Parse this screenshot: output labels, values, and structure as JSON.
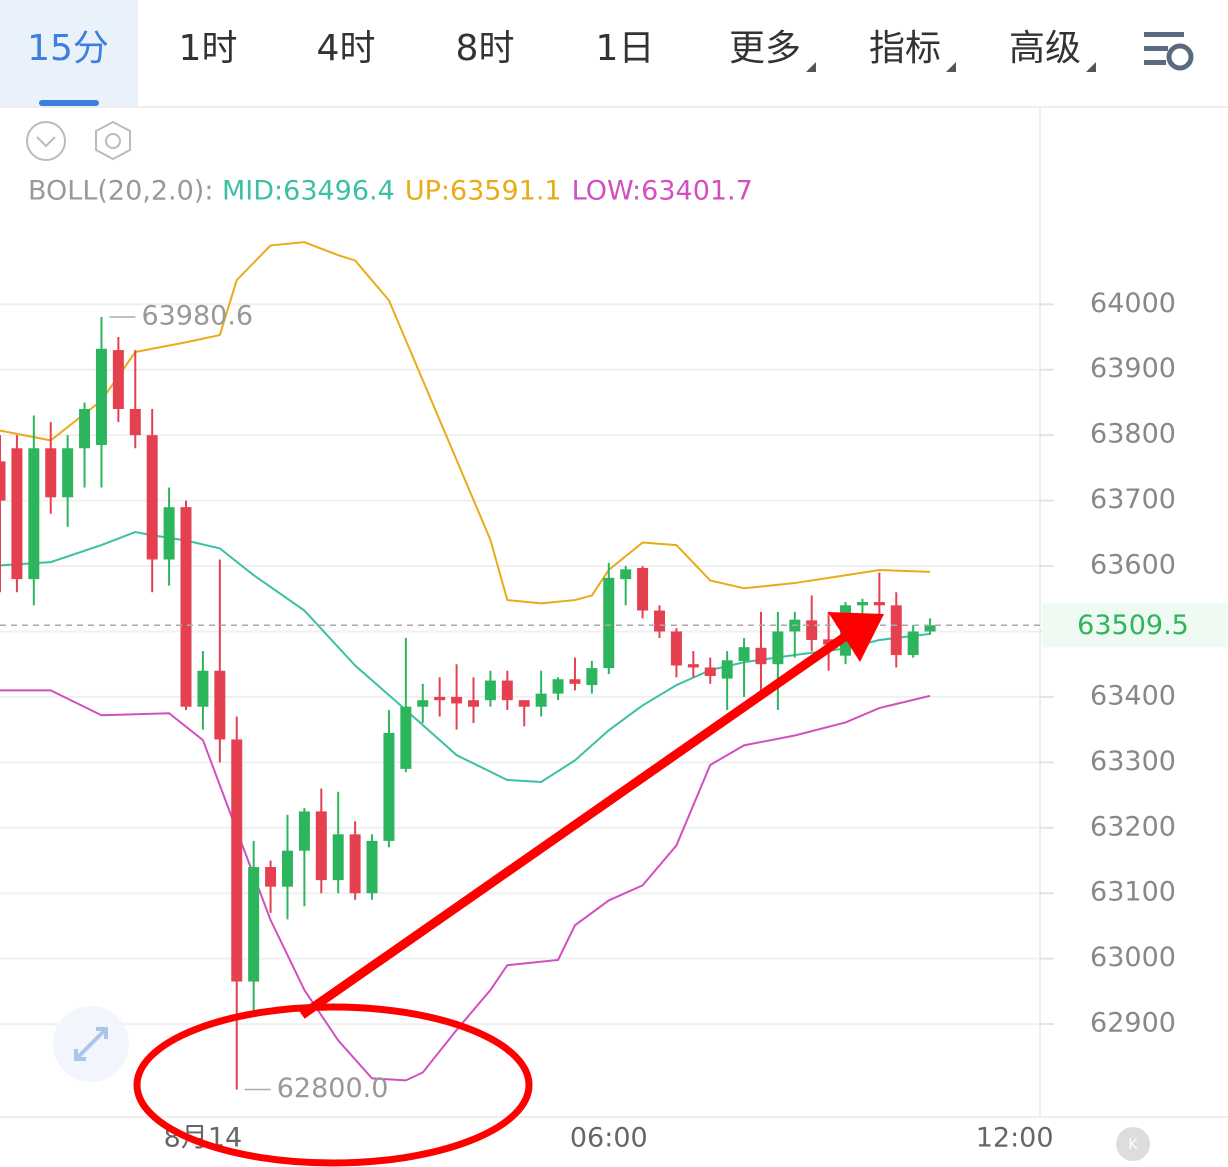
{
  "toolbar": {
    "tabs": [
      "15分",
      "1时",
      "4时",
      "8时",
      "1日",
      "更多",
      "指标",
      "高级"
    ],
    "active": 0
  },
  "chart_data": {
    "type": "candlestick",
    "indicator": "BOLL(20,2.0):",
    "x": [
      0,
      1,
      2,
      3,
      4,
      5,
      6,
      7,
      8,
      9,
      10,
      11,
      12,
      13,
      14,
      15,
      16,
      17,
      18,
      19,
      20,
      21,
      22,
      23,
      24,
      25,
      26,
      27,
      28,
      29,
      30,
      31,
      32,
      33,
      34,
      35,
      36,
      37,
      38,
      39,
      40,
      41,
      42,
      43,
      44,
      45,
      46,
      47,
      48,
      49,
      50,
      51,
      52,
      53,
      54,
      55
    ],
    "open": [
      63760,
      63780,
      63580,
      63780,
      63705,
      63780,
      63785,
      63930,
      63840,
      63800,
      63610,
      63690,
      63385,
      63440,
      63335,
      62965,
      63140,
      63110,
      63165,
      63225,
      63120,
      63190,
      63100,
      63180,
      63290,
      63385,
      63400,
      63400,
      63395,
      63395,
      63425,
      63395,
      63385,
      63405,
      63427,
      63418,
      63444,
      63580,
      63597,
      63532,
      63500,
      63450,
      63445,
      63428,
      63455,
      63475,
      63450,
      63500,
      63517,
      63488,
      63463,
      63540,
      63545,
      63540,
      63464,
      63500
    ],
    "high": [
      63800,
      63800,
      63830,
      63820,
      63800,
      63850,
      63980.6,
      63950,
      63930,
      63840,
      63720,
      63700,
      63470,
      63610,
      63370,
      63180,
      63150,
      63220,
      63230,
      63260,
      63255,
      63210,
      63190,
      63380,
      63490,
      63420,
      63430,
      63450,
      63430,
      63440,
      63440,
      63395,
      63440,
      63430,
      63460,
      63455,
      63605,
      63600,
      63600,
      63540,
      63505,
      63470,
      63460,
      63470,
      63490,
      63530,
      63530,
      63530,
      63555,
      63530,
      63545,
      63550,
      63590,
      63560,
      63510,
      63520
    ],
    "low": [
      63560,
      63560,
      63540,
      63680,
      63660,
      63720,
      63720,
      63820,
      63780,
      63560,
      63570,
      63380,
      63350,
      63300,
      62800.0,
      62920,
      63070,
      63060,
      63080,
      63100,
      63100,
      63090,
      63090,
      63170,
      63285,
      63360,
      63370,
      63350,
      63360,
      63385,
      63380,
      63355,
      63370,
      63395,
      63410,
      63405,
      63435,
      63540,
      63520,
      63490,
      63430,
      63430,
      63420,
      63380,
      63400,
      63410,
      63380,
      63460,
      63470,
      63440,
      63450,
      63470,
      63520,
      63445,
      63460,
      63495
    ],
    "close": [
      63700,
      63580,
      63780,
      63705,
      63780,
      63840,
      63932,
      63840,
      63800,
      63610,
      63690,
      63385,
      63440,
      63335,
      62965,
      63140,
      63110,
      63165,
      63225,
      63120,
      63190,
      63100,
      63180,
      63345,
      63385,
      63395,
      63395,
      63390,
      63385,
      63425,
      63395,
      63385,
      63405,
      63427,
      63420,
      63444,
      63582,
      63595,
      63532,
      63500,
      63448,
      63445,
      63432,
      63456,
      63476,
      63450,
      63500,
      63518,
      63487,
      63480,
      63540,
      63545,
      63540,
      63464,
      63500,
      63509.5
    ],
    "up_color": "#2db55d",
    "down_color": "#e5404f",
    "series": [
      {
        "name": "MID:63496.4",
        "color": "#3cbfa4",
        "x": [
          0,
          3,
          6,
          8,
          9,
          11,
          13,
          15,
          18,
          21,
          24,
          27,
          30,
          32,
          34,
          36,
          38,
          40,
          42,
          44,
          47,
          50,
          52,
          55
        ],
        "values": [
          63601,
          63606,
          63632,
          63652,
          63647,
          63639,
          63627,
          63586,
          63532,
          63448,
          63380,
          63311,
          63273,
          63270,
          63303,
          63349,
          63387,
          63418,
          63441,
          63453,
          63464,
          63474,
          63487,
          63496.4
        ]
      },
      {
        "name": "UP:63591.1",
        "color": "#e9ab17",
        "x": [
          0,
          3,
          6,
          8,
          11,
          13,
          14,
          16,
          18,
          20,
          21,
          23,
          25,
          27,
          29,
          30,
          32,
          34,
          35,
          36,
          38,
          40,
          42,
          44,
          47,
          50,
          52,
          55
        ],
        "values": [
          63807,
          63792,
          63853,
          63927,
          63942,
          63953,
          64037,
          64090,
          64095,
          64075,
          64067,
          64006,
          63884,
          63762,
          63640,
          63548,
          63543,
          63548,
          63555,
          63594,
          63636,
          63632,
          63578,
          63566,
          63574,
          63586,
          63594,
          63591.1
        ]
      },
      {
        "name": "LOW:63401.7",
        "color": "#d24fbf",
        "x": [
          0,
          3,
          6,
          10,
          12,
          14,
          16,
          18,
          20,
          22,
          24,
          25,
          27,
          29,
          30,
          33,
          34,
          36,
          38,
          40,
          42,
          44,
          47,
          50,
          52,
          55
        ],
        "values": [
          63410,
          63410,
          63372,
          63375,
          63334,
          63196,
          63059,
          62952,
          62875,
          62817,
          62814,
          62826,
          62891,
          62952,
          62990,
          62998,
          63051,
          63089,
          63112,
          63173,
          63296,
          63326,
          63341,
          63361,
          63383,
          63401.7
        ]
      }
    ],
    "extremes": {
      "x": [
        6,
        14
      ],
      "values": [
        63980.6,
        62800.0
      ],
      "value_labels": [
        "63980.6",
        "62800.0"
      ]
    },
    "last_price": 63509.5,
    "ylim": [
      62758,
      64300
    ],
    "yticks": [
      62900,
      63000,
      63100,
      63200,
      63300,
      63400,
      63500,
      63600,
      63700,
      63800,
      63900,
      64000
    ],
    "ytick_labels_hidden": [
      63500
    ],
    "xlim": [
      0,
      61.5
    ],
    "xticks": [
      {
        "value": 12,
        "label": "8月14"
      },
      {
        "value": 36,
        "label": "06:00"
      },
      {
        "value": 60,
        "label": "12:00"
      }
    ],
    "grid": true
  }
}
